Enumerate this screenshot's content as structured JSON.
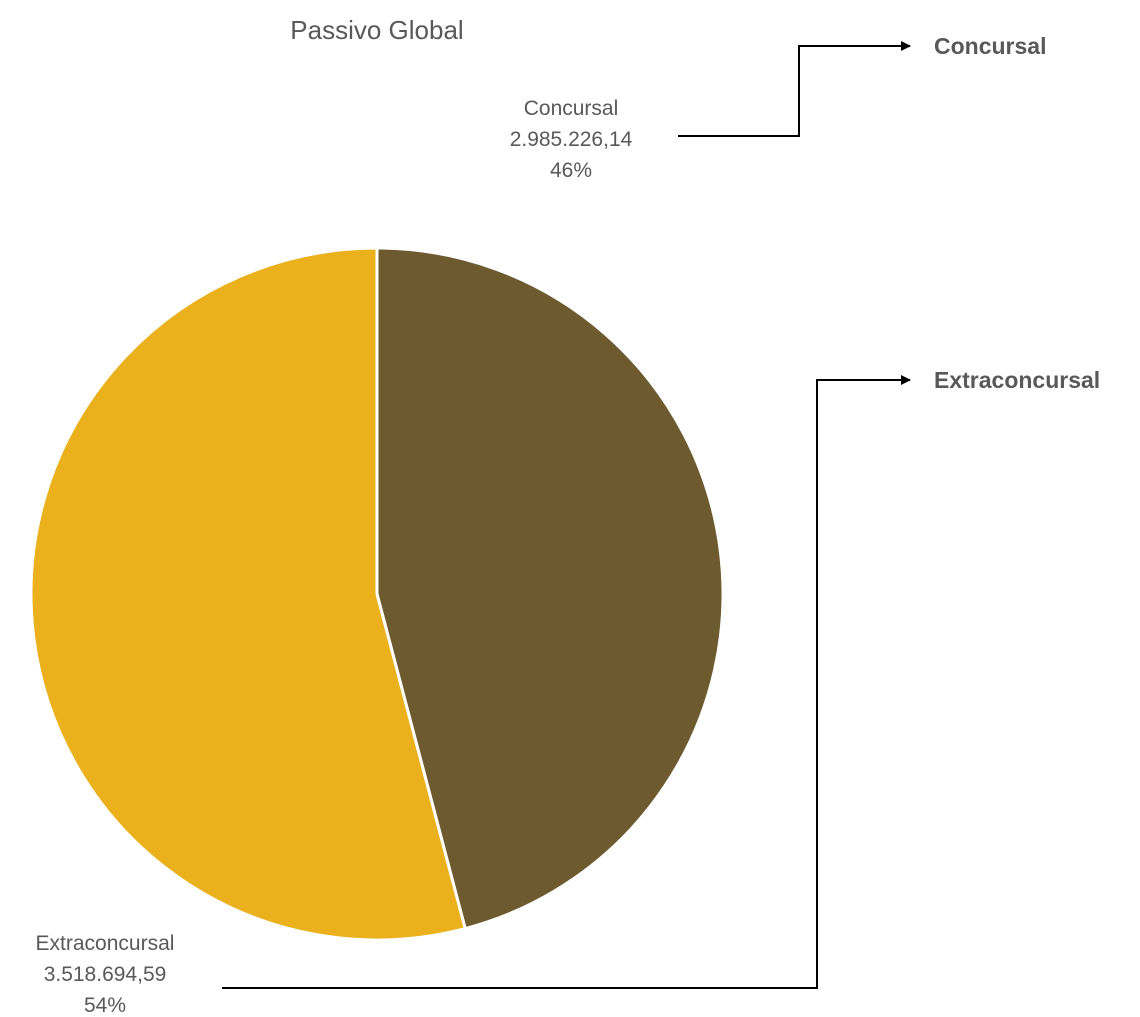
{
  "chart_data": {
    "type": "pie",
    "title": "Passivo Global",
    "slices": [
      {
        "name": "Concursal",
        "value": 2985226.14,
        "value_label": "2.985.226,14",
        "percent_label": "46%",
        "color": "#6e5a2f"
      },
      {
        "name": "Extraconcursal",
        "value": 3518694.59,
        "value_label": "3.518.694,59",
        "percent_label": "54%",
        "color": "#ebb11d"
      }
    ],
    "callouts": [
      {
        "label": "Concursal"
      },
      {
        "label": "Extraconcursal"
      }
    ]
  }
}
